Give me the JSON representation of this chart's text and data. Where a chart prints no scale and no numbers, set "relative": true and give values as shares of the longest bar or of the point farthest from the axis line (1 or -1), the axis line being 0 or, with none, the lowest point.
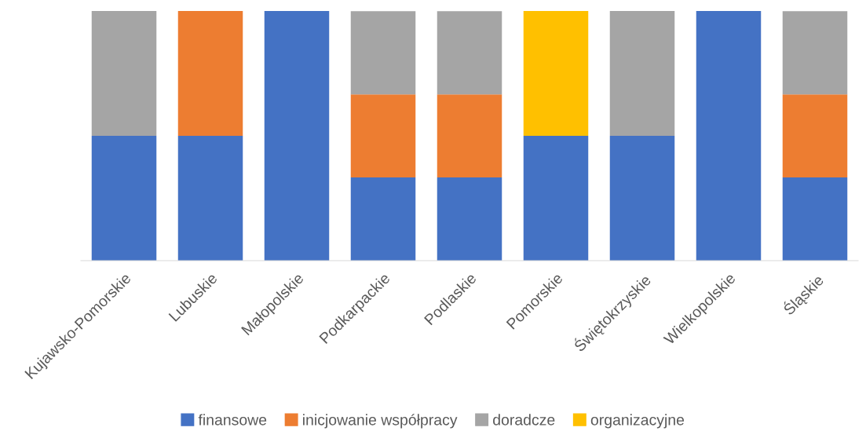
{
  "chart_data": {
    "type": "bar",
    "stacked": true,
    "relative": true,
    "grid": false,
    "legend": "bottom",
    "categories": [
      "Kujawsko-Pomorskie",
      "Lubuskie",
      "Małopolskie",
      "Podkarpackie",
      "Podlaskie",
      "Pomorskie",
      "Świętokrzyskie",
      "Wielkopolskie",
      "Śląskie"
    ],
    "series": [
      {
        "name": "finansowe",
        "color": "#4472c4",
        "values": [
          0.5,
          0.5,
          1,
          0.333,
          0.333,
          0.5,
          0.5,
          1,
          0.333
        ]
      },
      {
        "name": "inicjowanie współpracy",
        "color": "#ed7d31",
        "values": [
          null,
          0.5,
          null,
          0.333,
          0.333,
          null,
          null,
          null,
          0.333
        ]
      },
      {
        "name": "doradcze",
        "color": "#a5a5a5",
        "values": [
          0.5,
          null,
          null,
          0.333,
          0.333,
          null,
          0.5,
          null,
          0.333
        ]
      },
      {
        "name": "organizacyjne",
        "color": "#ffc000",
        "values": [
          null,
          null,
          null,
          null,
          null,
          0.5,
          null,
          null,
          null
        ]
      }
    ]
  }
}
